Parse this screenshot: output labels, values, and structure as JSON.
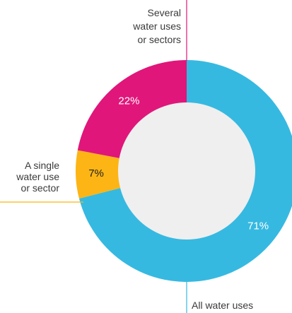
{
  "chart_data": {
    "type": "pie",
    "variant": "donut",
    "title": "",
    "slices": [
      {
        "key": "all",
        "label_lines": [
          "All water uses"
        ],
        "value": 71,
        "value_label": "71%",
        "color": "#36b9e1",
        "text_color": "#ffffff"
      },
      {
        "key": "single",
        "label_lines": [
          "A single",
          "water use",
          "or sector"
        ],
        "value": 7,
        "value_label": "7%",
        "color": "#fcb514",
        "text_color": "#222222"
      },
      {
        "key": "several",
        "label_lines": [
          "Several",
          "water uses",
          "or sectors"
        ],
        "value": 22,
        "value_label": "22%",
        "color": "#e0167a",
        "text_color": "#ffffff"
      }
    ],
    "center_fill": "#efefef",
    "start": "top",
    "direction": "clockwise",
    "legend": "none"
  }
}
